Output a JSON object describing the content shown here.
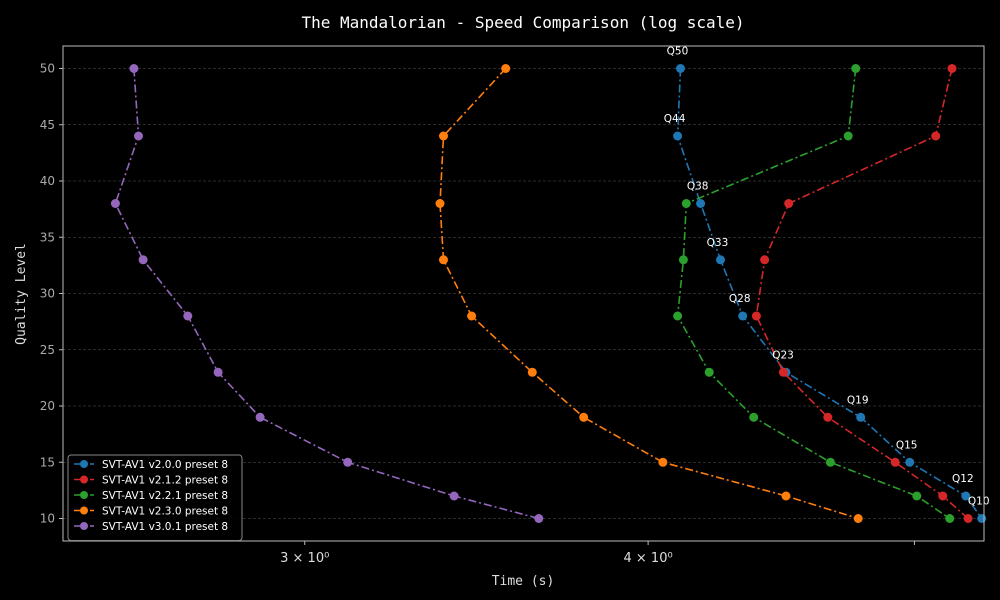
{
  "chart_data": {
    "type": "line",
    "title": "The Mandalorian - Speed Comparison (log scale)",
    "xlabel": "Time (s)",
    "ylabel": "Quality Level",
    "xscale": "log",
    "xlim": [
      2.45,
      5.3
    ],
    "ylim": [
      8,
      52
    ],
    "xticks": [
      {
        "value": 3.0,
        "label": "3 × 10⁰"
      },
      {
        "value": 4.0,
        "label": "4 × 10⁰"
      },
      {
        "value": 5.0,
        "label": ""
      }
    ],
    "yticks": [
      10,
      15,
      20,
      25,
      30,
      35,
      40,
      45,
      50
    ],
    "grid": true,
    "legend_position": "lower-left",
    "y": [
      50,
      44,
      38,
      33,
      28,
      23,
      19,
      15,
      12,
      10
    ],
    "point_labels": [
      {
        "series": 0,
        "y": 50,
        "text": "Q50"
      },
      {
        "series": 0,
        "y": 44,
        "text": "Q44"
      },
      {
        "series": 0,
        "y": 38,
        "text": "Q38"
      },
      {
        "series": 0,
        "y": 33,
        "text": "Q33"
      },
      {
        "series": 0,
        "y": 28,
        "text": "Q28"
      },
      {
        "series": 0,
        "y": 23,
        "text": "Q23"
      },
      {
        "series": 0,
        "y": 19,
        "text": "Q19"
      },
      {
        "series": 0,
        "y": 15,
        "text": "Q15"
      },
      {
        "series": 0,
        "y": 12,
        "text": "Q12"
      },
      {
        "series": 0,
        "y": 10,
        "text": "Q10"
      }
    ],
    "series": [
      {
        "name": "SVT-AV1 v2.0.0 preset 8",
        "color": "#1f77b4",
        "x": [
          4.11,
          4.1,
          4.18,
          4.25,
          4.33,
          4.49,
          4.78,
          4.98,
          5.22,
          5.29
        ]
      },
      {
        "name": "SVT-AV1 v2.1.2 preset 8",
        "color": "#d62728",
        "x": [
          5.16,
          5.09,
          4.5,
          4.41,
          4.38,
          4.48,
          4.65,
          4.92,
          5.12,
          5.23
        ]
      },
      {
        "name": "SVT-AV1 v2.2.1 preset 8",
        "color": "#2ca02c",
        "x": [
          4.76,
          4.73,
          4.13,
          4.12,
          4.1,
          4.21,
          4.37,
          4.66,
          5.01,
          5.15
        ]
      },
      {
        "name": "SVT-AV1 v2.3.0 preset 8",
        "color": "#ff7f0e",
        "x": [
          3.55,
          3.37,
          3.36,
          3.37,
          3.45,
          3.63,
          3.79,
          4.05,
          4.49,
          4.77
        ]
      },
      {
        "name": "SVT-AV1 v3.0.1 preset 8",
        "color": "#9467bd",
        "x": [
          2.6,
          2.61,
          2.56,
          2.62,
          2.72,
          2.79,
          2.89,
          3.11,
          3.4,
          3.65
        ]
      }
    ]
  }
}
